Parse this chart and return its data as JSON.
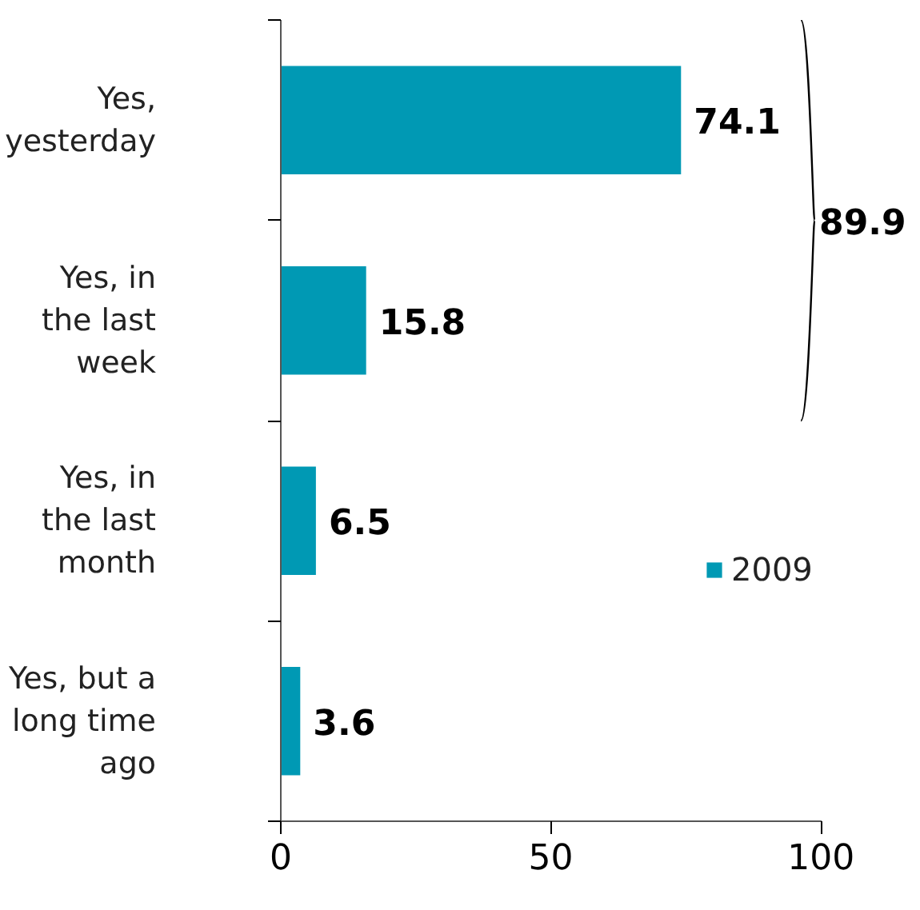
{
  "chart_data": {
    "type": "bar",
    "orientation": "horizontal",
    "categories": [
      "Yes,\nyesterday",
      "Yes, in\nthe last\nweek",
      "Yes, in\nthe last\nmonth",
      "Yes, but a\nlong time\nago"
    ],
    "series": [
      {
        "name": "2009",
        "color": "#0099b4",
        "values": [
          74.1,
          15.8,
          6.5,
          3.6
        ]
      }
    ],
    "xlim": [
      0,
      100
    ],
    "xticks": [
      0,
      50,
      100
    ],
    "data_labels": true,
    "legend": "right",
    "grid": false,
    "annotations": [
      "89.9"
    ]
  }
}
